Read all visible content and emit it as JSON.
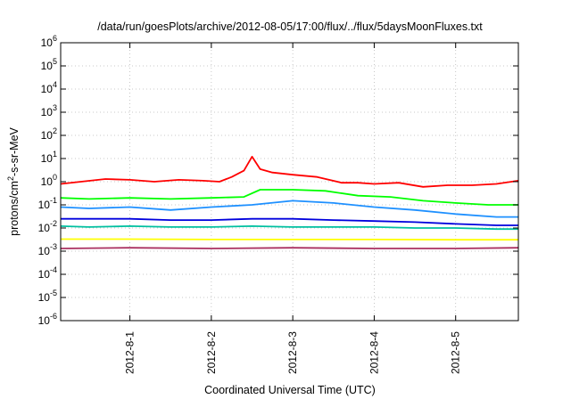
{
  "chart_data": {
    "type": "line",
    "title": "/data/run/goesPlots/archive/2012-08-05/17:00/flux/../flux/5daysMoonFluxes.txt",
    "xlabel": "Coordinated Universal Time (UTC)",
    "ylabel_prefix": "protons/cm",
    "ylabel_sup": "2",
    "ylabel_suffix": "-s-sr-MeV",
    "yscale": "log",
    "ylim": [
      1e-06,
      1000000.0
    ],
    "xlim_days": [
      -0.85,
      4.77
    ],
    "grid": true,
    "y_ticks": [
      {
        "base": "10",
        "exp": "-6",
        "value": 1e-06
      },
      {
        "base": "10",
        "exp": "-5",
        "value": 1e-05
      },
      {
        "base": "10",
        "exp": "-4",
        "value": 0.0001
      },
      {
        "base": "10",
        "exp": "-3",
        "value": 0.001
      },
      {
        "base": "10",
        "exp": "-2",
        "value": 0.01
      },
      {
        "base": "10",
        "exp": "-1",
        "value": 0.1
      },
      {
        "base": "10",
        "exp": "0",
        "value": 1
      },
      {
        "base": "10",
        "exp": "1",
        "value": 10
      },
      {
        "base": "10",
        "exp": "2",
        "value": 100
      },
      {
        "base": "10",
        "exp": "3",
        "value": 1000
      },
      {
        "base": "10",
        "exp": "4",
        "value": 10000
      },
      {
        "base": "10",
        "exp": "5",
        "value": 100000
      },
      {
        "base": "10",
        "exp": "6",
        "value": 1000000
      }
    ],
    "x_ticks": [
      {
        "label": "2012-8-1",
        "day": 0
      },
      {
        "label": "2012-8-2",
        "day": 1
      },
      {
        "label": "2012-8-3",
        "day": 2
      },
      {
        "label": "2012-8-4",
        "day": 3
      },
      {
        "label": "2012-8-5",
        "day": 4
      }
    ],
    "series": [
      {
        "color": "#ff0000",
        "x": [
          -0.85,
          -0.6,
          -0.3,
          0.0,
          0.3,
          0.6,
          0.9,
          1.1,
          1.25,
          1.4,
          1.5,
          1.6,
          1.75,
          2.0,
          2.3,
          2.6,
          2.8,
          3.0,
          3.3,
          3.6,
          3.9,
          4.2,
          4.5,
          4.77
        ],
        "y": [
          0.8,
          1.0,
          1.3,
          1.2,
          1.0,
          1.2,
          1.1,
          1.0,
          1.6,
          3.0,
          12,
          3.5,
          2.5,
          2.0,
          1.6,
          0.9,
          0.9,
          0.8,
          0.9,
          0.6,
          0.7,
          0.7,
          0.8,
          1.1
        ]
      },
      {
        "color": "#00ff00",
        "x": [
          -0.85,
          -0.5,
          0.0,
          0.5,
          1.0,
          1.4,
          1.6,
          2.0,
          2.4,
          2.8,
          3.2,
          3.6,
          4.0,
          4.4,
          4.77
        ],
        "y": [
          0.2,
          0.18,
          0.2,
          0.18,
          0.2,
          0.22,
          0.45,
          0.45,
          0.4,
          0.25,
          0.22,
          0.15,
          0.12,
          0.1,
          0.1
        ]
      },
      {
        "color": "#1e90ff",
        "x": [
          -0.85,
          -0.5,
          0.0,
          0.5,
          1.0,
          1.5,
          2.0,
          2.5,
          3.0,
          3.5,
          4.0,
          4.5,
          4.77
        ],
        "y": [
          0.08,
          0.07,
          0.08,
          0.06,
          0.08,
          0.1,
          0.15,
          0.12,
          0.08,
          0.06,
          0.04,
          0.03,
          0.03
        ]
      },
      {
        "color": "#0000dd",
        "x": [
          -0.85,
          -0.5,
          0.0,
          0.5,
          1.0,
          1.5,
          2.0,
          2.5,
          3.0,
          3.5,
          4.0,
          4.5,
          4.77
        ],
        "y": [
          0.025,
          0.025,
          0.025,
          0.022,
          0.022,
          0.025,
          0.025,
          0.022,
          0.02,
          0.018,
          0.015,
          0.013,
          0.013
        ]
      },
      {
        "color": "#00c0a0",
        "x": [
          -0.85,
          -0.5,
          0.0,
          0.5,
          1.0,
          1.5,
          2.0,
          2.5,
          3.0,
          3.5,
          4.0,
          4.5,
          4.77
        ],
        "y": [
          0.012,
          0.011,
          0.012,
          0.011,
          0.011,
          0.012,
          0.011,
          0.011,
          0.011,
          0.01,
          0.01,
          0.009,
          0.009
        ]
      },
      {
        "color": "#ffff00",
        "x": [
          -0.85,
          0.0,
          1.0,
          2.0,
          3.0,
          4.0,
          4.77
        ],
        "y": [
          0.0033,
          0.0033,
          0.0032,
          0.0032,
          0.0032,
          0.0031,
          0.0031
        ]
      },
      {
        "color": "#aa3060",
        "x": [
          -0.85,
          0.0,
          1.0,
          2.0,
          3.0,
          4.0,
          4.77
        ],
        "y": [
          0.0013,
          0.0014,
          0.0013,
          0.0014,
          0.0013,
          0.0013,
          0.0014
        ]
      }
    ]
  }
}
